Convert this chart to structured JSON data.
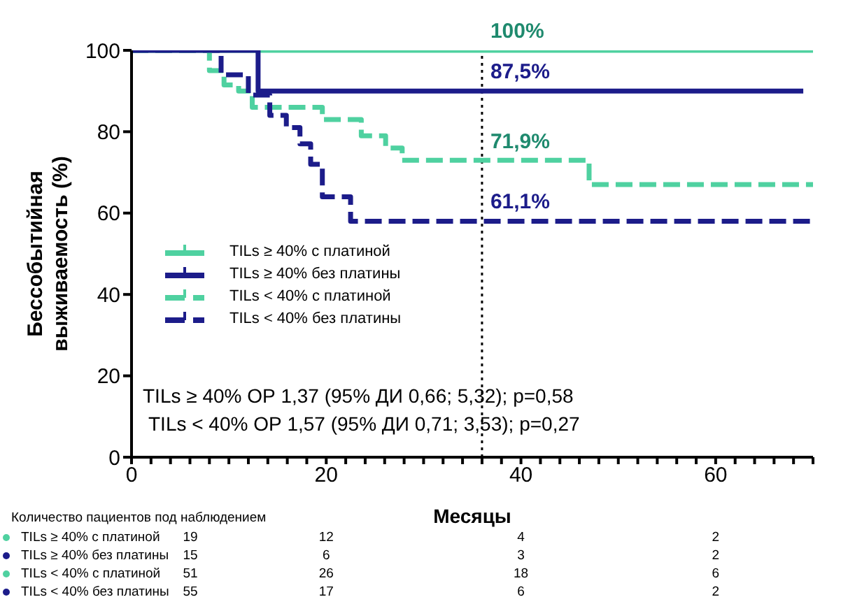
{
  "chart_data": {
    "type": "step",
    "xlabel": "Месяцы",
    "ylabel": "Бессобытийная выживаемость (%)",
    "xlim": [
      0,
      70
    ],
    "ylim": [
      0,
      100
    ],
    "xticks": [
      {
        "value": 0,
        "label": "0"
      },
      {
        "value": 2,
        "label": null
      },
      {
        "value": 4,
        "label": null
      },
      {
        "value": 6,
        "label": null
      },
      {
        "value": 8,
        "label": null
      },
      {
        "value": 10,
        "label": null
      },
      {
        "value": 12,
        "label": null
      },
      {
        "value": 14,
        "label": null
      },
      {
        "value": 16,
        "label": null
      },
      {
        "value": 18,
        "label": null
      },
      {
        "value": 20,
        "label": "20"
      },
      {
        "value": 22,
        "label": null
      },
      {
        "value": 24,
        "label": null
      },
      {
        "value": 26,
        "label": null
      },
      {
        "value": 28,
        "label": null
      },
      {
        "value": 30,
        "label": null
      },
      {
        "value": 32,
        "label": null
      },
      {
        "value": 34,
        "label": null
      },
      {
        "value": 36,
        "label": null
      },
      {
        "value": 38,
        "label": null
      },
      {
        "value": 40,
        "label": "40"
      },
      {
        "value": 42,
        "label": null
      },
      {
        "value": 44,
        "label": null
      },
      {
        "value": 46,
        "label": null
      },
      {
        "value": 48,
        "label": null
      },
      {
        "value": 50,
        "label": null
      },
      {
        "value": 52,
        "label": null
      },
      {
        "value": 54,
        "label": null
      },
      {
        "value": 56,
        "label": null
      },
      {
        "value": 58,
        "label": null
      },
      {
        "value": 60,
        "label": "60"
      },
      {
        "value": 62,
        "label": null
      },
      {
        "value": 64,
        "label": null
      },
      {
        "value": 66,
        "label": null
      },
      {
        "value": 68,
        "label": null
      },
      {
        "value": 70,
        "label": null
      }
    ],
    "yticks": [
      0,
      20,
      40,
      60,
      80,
      100
    ],
    "legend": "left",
    "grid": false,
    "series": [
      {
        "name": "TILs ≥ 40% с платиной",
        "color": "#4fd1a0",
        "line_style": "solid",
        "x": [
          0,
          70
        ],
        "values": [
          100,
          100
        ]
      },
      {
        "name": "TILs ≥ 40% без платины",
        "color": "#1c1c8a",
        "line_style": "solid",
        "x": [
          0,
          13,
          69
        ],
        "values": [
          100,
          90,
          90
        ]
      },
      {
        "name": "TILs < 40% с платиной",
        "color": "#4fd1a0",
        "line_style": "dashed",
        "x": [
          0,
          8,
          9.5,
          11,
          12.4,
          19.6,
          23.6,
          26.1,
          27.8,
          47,
          70
        ],
        "values": [
          100,
          95,
          91.5,
          90,
          86,
          83,
          79,
          76,
          73,
          67,
          67
        ]
      },
      {
        "name": "TILs < 40% без платины",
        "color": "#1c1c8a",
        "line_style": "dashed",
        "x": [
          0,
          9.2,
          12,
          14.2,
          15.9,
          17.3,
          18.4,
          19.6,
          22.5,
          70
        ],
        "values": [
          100,
          94,
          89,
          84,
          81,
          77,
          72,
          64,
          58,
          58
        ]
      }
    ],
    "ref_lines": [
      {
        "axis": "x",
        "value": 36,
        "line_style": "dotted",
        "color": "#000000"
      }
    ],
    "annotations": [
      "100%",
      "87,5%",
      "71,9%",
      "61,1%",
      "TILs ≥ 40% OР 1,37 (95% ДИ 0,66; 5,32); p=0,58",
      "TILs < 40% OР 1,57 (95% ДИ 0,71; 3,53); p=0,27",
      "Количество пациентов под наблюдением",
      "19",
      "12",
      "4",
      "2",
      "15",
      "6",
      "3",
      "2",
      "51",
      "26",
      "18",
      "6",
      "55",
      "17",
      "6",
      "2"
    ]
  }
}
